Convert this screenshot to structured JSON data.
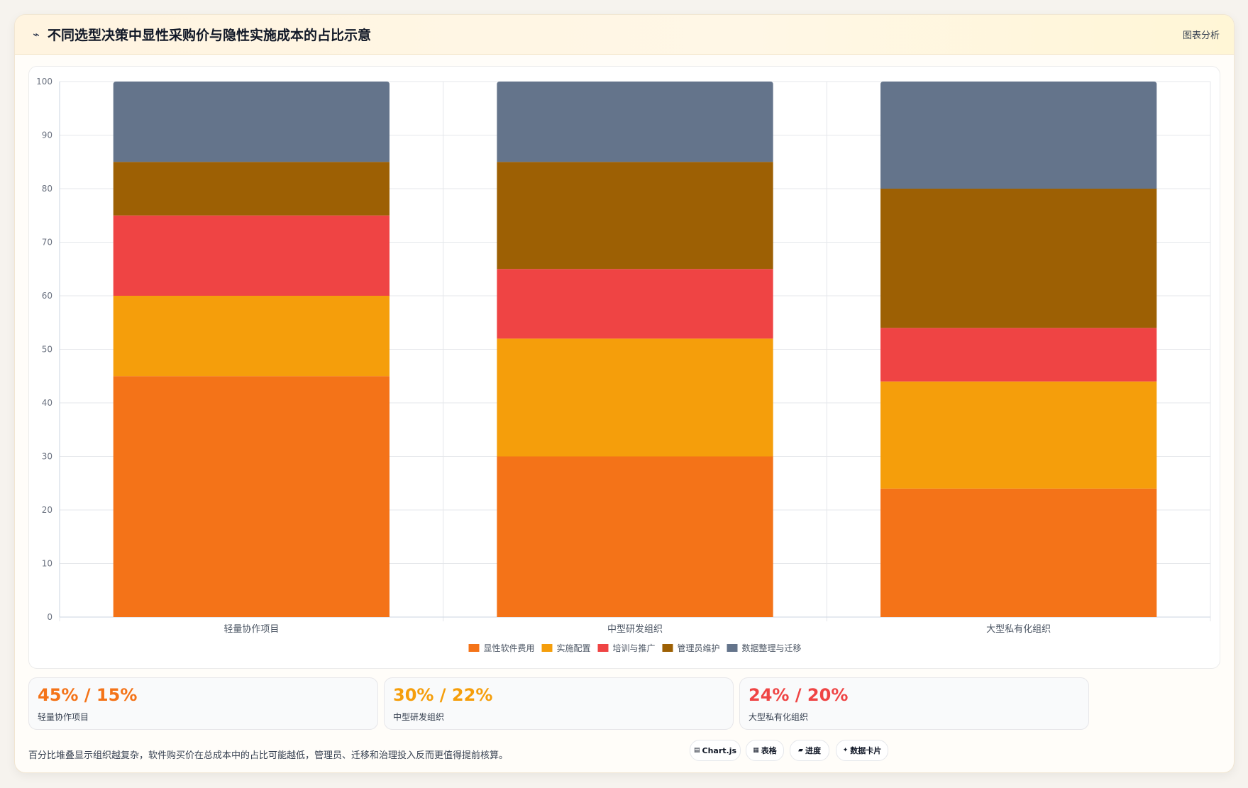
{
  "header": {
    "icon": "trend-icon",
    "title": "不同选型决策中显性采购价与隐性实施成本的占比示意",
    "action_label": "图表分析"
  },
  "chart_data": {
    "type": "bar",
    "stacked": true,
    "categories": [
      "轻量协作项目",
      "中型研发组织",
      "大型私有化组织"
    ],
    "series": [
      {
        "name": "显性软件费用",
        "color": "#f47318",
        "values": [
          45,
          30,
          24
        ]
      },
      {
        "name": "实施配置",
        "color": "#f59e0b",
        "values": [
          15,
          22,
          20
        ]
      },
      {
        "name": "培训与推广",
        "color": "#ef4444",
        "values": [
          15,
          13,
          10
        ]
      },
      {
        "name": "管理员维护",
        "color": "#9d6004",
        "values": [
          10,
          20,
          26
        ]
      },
      {
        "name": "数据整理与迁移",
        "color": "#64748b",
        "values": [
          15,
          15,
          20
        ]
      }
    ],
    "ylim": [
      0,
      100
    ],
    "yticks": [
      "0",
      "10",
      "20",
      "30",
      "40",
      "50",
      "60",
      "70",
      "80",
      "90",
      "100"
    ],
    "grid": true,
    "legend_position": "bottom"
  },
  "stats": [
    {
      "value": "45% / 15%",
      "label": "轻量协作项目",
      "color": "#f47318"
    },
    {
      "value": "30% / 22%",
      "label": "中型研发组织",
      "color": "#f59e0b"
    },
    {
      "value": "24% / 20%",
      "label": "大型私有化组织",
      "color": "#ef4444"
    }
  ],
  "footnote": "百分比堆叠显示组织越复杂，软件购买价在总成本中的占比可能越低，管理员、迁移和治理投入反而更值得提前核算。",
  "chips": [
    {
      "icon": "chart-icon",
      "glyph": "▤",
      "label": "Chart.js"
    },
    {
      "icon": "table-icon",
      "glyph": "▦",
      "label": "表格"
    },
    {
      "icon": "progress-icon",
      "glyph": "▰",
      "label": "进度"
    },
    {
      "icon": "card-icon",
      "glyph": "✦",
      "label": "数据卡片"
    }
  ]
}
